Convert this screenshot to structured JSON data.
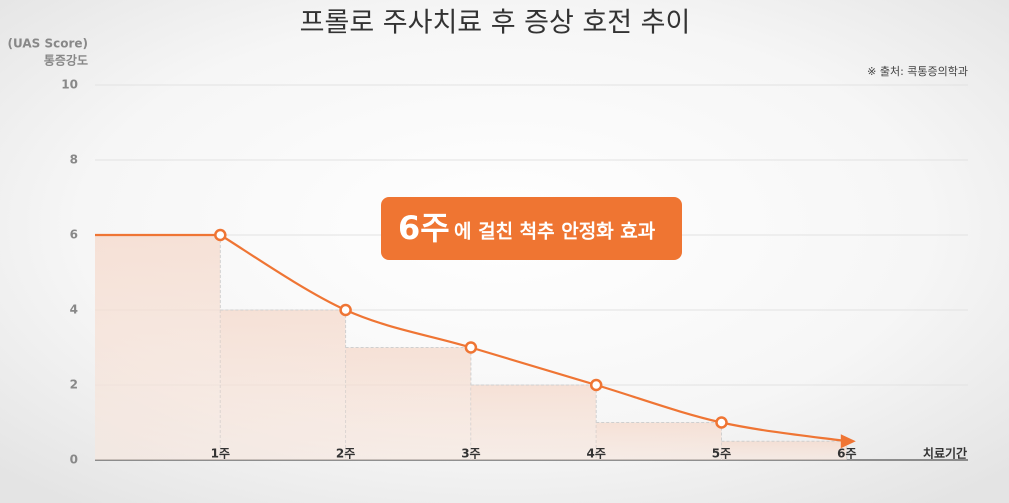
{
  "chart_data": {
    "type": "line",
    "title": "프롤로 주사치료 후 증상 호전 추이",
    "yunit": "(UAS Score)",
    "ylabel": "통증강도",
    "source": "※ 출처: 콕통증의학과",
    "xlabel": "치료기간",
    "annotation": {
      "highlight": "6주",
      "text": "에 걸친 척추 안정화 효과"
    },
    "categories": [
      null,
      "1주",
      "2주",
      "3주",
      "4주",
      "5주",
      "6주"
    ],
    "values": [
      6,
      6,
      4,
      3,
      2,
      1,
      0.5
    ],
    "color": "#ef7534",
    "ylim": [
      0,
      10
    ],
    "yticks": [
      0,
      2,
      4,
      6,
      8,
      10
    ],
    "grid": true
  }
}
